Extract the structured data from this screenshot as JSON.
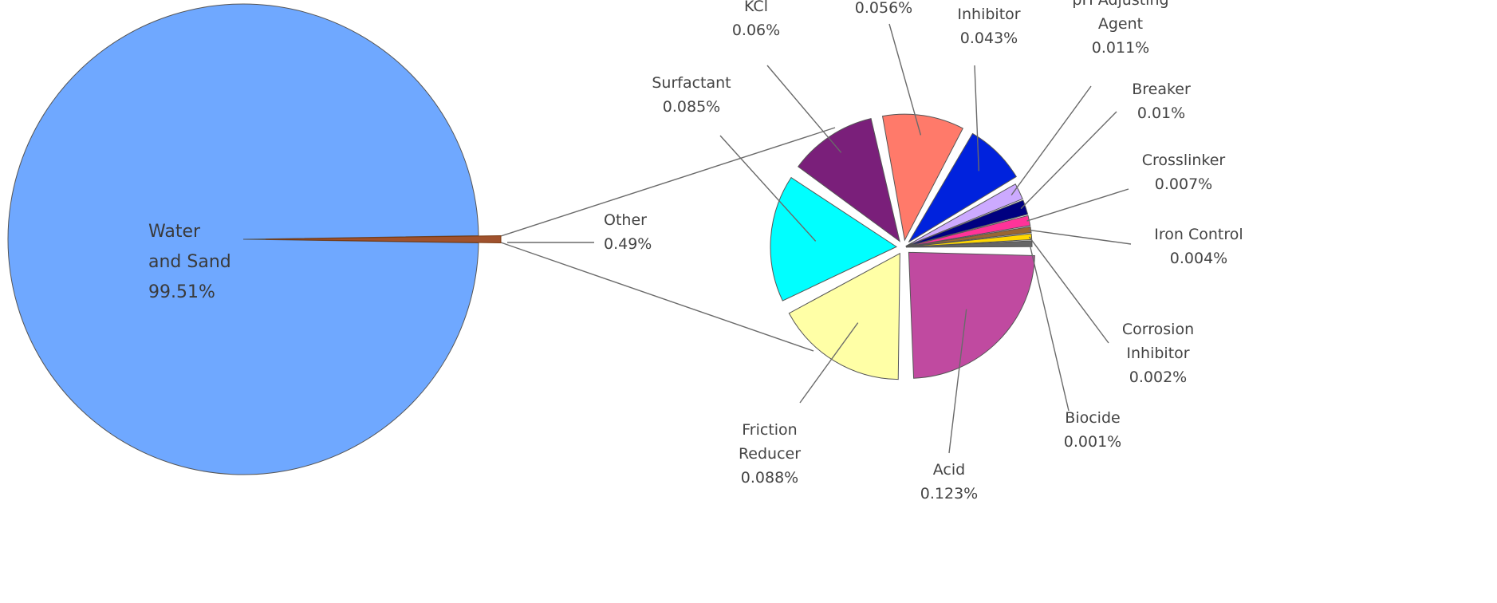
{
  "chart_data": {
    "type": "pie",
    "main_pie": {
      "slices": [
        {
          "label_lines": [
            "Water",
            "and Sand"
          ],
          "value_text": "99.51%",
          "value": 99.51,
          "color": "#6fa8ff"
        },
        {
          "label_lines": [
            "Other"
          ],
          "value_text": "0.49%",
          "value": 0.49,
          "color": "#a0522d"
        }
      ]
    },
    "detail_pie": {
      "slices": [
        {
          "label_lines": [
            "Acid"
          ],
          "value_text": "0.123%",
          "value": 0.123,
          "color": "#c04aa0"
        },
        {
          "label_lines": [
            "Friction",
            "Reducer"
          ],
          "value_text": "0.088%",
          "value": 0.088,
          "color": "#ffffa6"
        },
        {
          "label_lines": [
            "Surfactant"
          ],
          "value_text": "0.085%",
          "value": 0.085,
          "color": "#00ffff"
        },
        {
          "label_lines": [
            "KCl"
          ],
          "value_text": "0.06%",
          "value": 0.06,
          "color": "#7a1f7a"
        },
        {
          "label_lines": [
            ""
          ],
          "value_text": "0.056%",
          "value": 0.056,
          "color": "#ff7a6a"
        },
        {
          "label_lines": [
            "Inhibitor"
          ],
          "value_text": "0.043%",
          "value": 0.043,
          "color": "#0022dd"
        },
        {
          "label_lines": [
            "pH Adjusting",
            "Agent"
          ],
          "value_text": "0.011%",
          "value": 0.011,
          "color": "#ccaaff"
        },
        {
          "label_lines": [
            "Breaker"
          ],
          "value_text": "0.01%",
          "value": 0.01,
          "color": "#000080"
        },
        {
          "label_lines": [
            "Crosslinker"
          ],
          "value_text": "0.007%",
          "value": 0.007,
          "color": "#ff3399"
        },
        {
          "label_lines": [
            "Iron Control"
          ],
          "value_text": "0.004%",
          "value": 0.004,
          "color": "#996633"
        },
        {
          "label_lines": [
            "Corrosion",
            "Inhibitor"
          ],
          "value_text": "0.002%",
          "value": 0.002,
          "color": "#ffd700"
        },
        {
          "label_lines": [
            "Biocide"
          ],
          "value_text": "0.001%",
          "value": 0.001,
          "color": "#666666"
        }
      ]
    }
  }
}
